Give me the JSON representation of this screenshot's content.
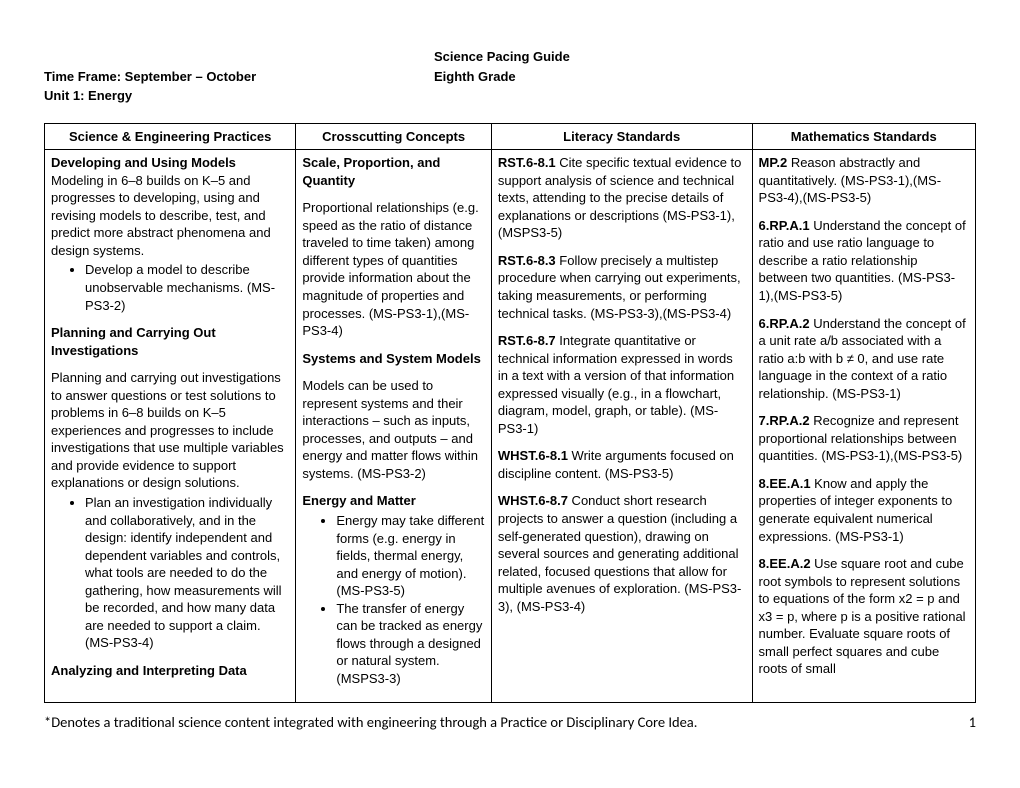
{
  "header": {
    "title_line1": "Science Pacing Guide",
    "title_line2": "Eighth Grade",
    "timeframe": "Time Frame: September – October",
    "unit": "Unit 1: Energy"
  },
  "columns": [
    "Science & Engineering Practices",
    "Crosscutting Concepts",
    "Literacy Standards",
    "Mathematics Standards"
  ],
  "col1": {
    "h1": "Developing and Using Models",
    "p1": "Modeling in 6–8 builds on K–5 and progresses to developing, using and revising models to describe, test, and predict more abstract phenomena and design systems.",
    "b1": "Develop a model to describe unobservable mechanisms. (MS-PS3-2)",
    "h2": "Planning and Carrying Out Investigations",
    "p2": "Planning and carrying out investigations to answer questions or test solutions to problems in 6–8 builds on K–5 experiences and progresses to include investigations that use multiple variables and provide evidence to support explanations or design solutions.",
    "b2": "Plan an investigation individually and collaboratively, and in the design: identify independent and dependent variables and controls, what tools are needed to do the gathering, how measurements will be recorded, and how many data are needed to support a claim. (MS-PS3-4)",
    "h3": "Analyzing and Interpreting Data"
  },
  "col2": {
    "h1": "Scale, Proportion, and Quantity",
    "p1": "Proportional relationships (e.g. speed as the ratio of distance traveled to time taken) among different types of quantities provide information about the magnitude of properties and processes. (MS-PS3-1),(MS-PS3-4)",
    "h2": "Systems and System Models",
    "p2": "Models can be used to represent systems and their interactions – such as inputs, processes, and outputs – and energy and matter flows within systems. (MS-PS3-2)",
    "h3": "Energy and Matter",
    "b1": "Energy may take different forms (e.g. energy in fields, thermal energy, and energy of motion). (MS-PS3-5)",
    "b2": "The transfer of energy can be tracked as energy flows through a designed or natural system. (MSPS3-3)"
  },
  "col3": {
    "s1b": "RST.6-8.1",
    "s1": " Cite specific textual evidence to support analysis of science and technical texts, attending to the precise details of explanations or descriptions (MS-PS3-1),(MSPS3-5)",
    "s2b": "RST.6-8.3",
    "s2": " Follow precisely a multistep procedure when carrying out experiments, taking measurements, or performing technical tasks. (MS-PS3-3),(MS-PS3-4)",
    "s3b": "RST.6-8.7",
    "s3": " Integrate quantitative or technical information expressed in words in a text with a version of that information expressed visually (e.g., in a flowchart, diagram, model, graph, or table). (MS-PS3-1)",
    "s4b": "WHST.6-8.1",
    "s4": " Write arguments focused on discipline content. (MS-PS3-5)",
    "s5b": "WHST.6-8.7",
    "s5": " Conduct short research projects to answer a question (including a self-generated question), drawing on several sources and generating additional related, focused questions that allow for multiple avenues of exploration. (MS-PS3-3), (MS-PS3-4)"
  },
  "col4": {
    "s1b": "MP.2",
    "s1": " Reason abstractly and quantitatively. (MS-PS3-1),(MS-PS3-4),(MS-PS3-5)",
    "s2b": "6.RP.A.1",
    "s2": " Understand the concept of ratio and use ratio language to describe a ratio relationship between two quantities. (MS-PS3-1),(MS-PS3-5)",
    "s3b": "6.RP.A.2",
    "s3": " Understand the concept of a unit rate a/b associated with a ratio a:b with b ≠ 0, and use rate language in the context of a ratio relationship. (MS-PS3-1)",
    "s4b": "7.RP.A.2",
    "s4": " Recognize and represent proportional relationships between quantities. (MS-PS3-1),(MS-PS3-5)",
    "s5b": "8.EE.A.1",
    "s5": " Know and apply the properties of integer exponents to generate equivalent numerical expressions. (MS-PS3-1)",
    "s6b": "8.EE.A.2",
    "s6": " Use square root and cube root symbols to represent solutions to equations of the form x2 = p and x3 = p, where p is a positive rational number. Evaluate square roots of small perfect squares and cube roots of small"
  },
  "footer": {
    "note": "*Denotes a traditional science content integrated with engineering through a Practice or Disciplinary Core Idea.",
    "page": "1"
  }
}
